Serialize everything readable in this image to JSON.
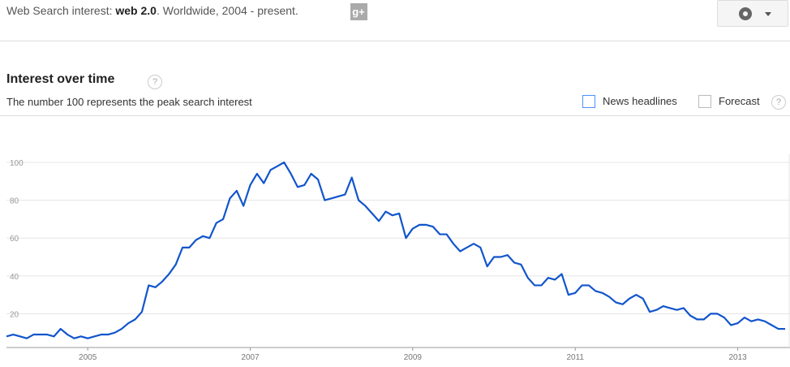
{
  "header": {
    "prefix": "Web Search interest: ",
    "term": "web 2.0",
    "suffix": ". Worldwide, 2004 - present."
  },
  "panel": {
    "title": "Interest over time",
    "subtitle": "The number 100 represents the peak search interest",
    "options": [
      "News headlines",
      "Forecast"
    ],
    "help": "?"
  },
  "chart_data": {
    "type": "line",
    "categories": [
      null,
      null,
      null,
      null,
      null,
      null,
      null,
      null,
      null,
      null,
      null,
      null,
      "2005",
      null,
      null,
      null,
      null,
      null,
      null,
      null,
      null,
      null,
      null,
      null,
      null,
      null,
      null,
      null,
      null,
      null,
      null,
      null,
      null,
      null,
      null,
      null,
      "2007",
      null,
      null,
      null,
      null,
      null,
      null,
      null,
      null,
      null,
      null,
      null,
      null,
      null,
      null,
      null,
      null,
      null,
      null,
      null,
      null,
      null,
      null,
      null,
      "2009",
      null,
      null,
      null,
      null,
      null,
      null,
      null,
      null,
      null,
      null,
      null,
      null,
      null,
      null,
      null,
      null,
      null,
      null,
      null,
      null,
      null,
      null,
      null,
      "2011",
      null,
      null,
      null,
      null,
      null,
      null,
      null,
      null,
      null,
      null,
      null,
      null,
      null,
      null,
      null,
      null,
      null,
      null,
      null,
      null,
      null,
      null,
      null,
      "2013",
      null,
      null,
      null,
      null,
      null,
      null,
      null
    ],
    "series": [
      {
        "name": "web 2.0",
        "color": "#1155cc",
        "values": [
          8,
          9,
          8,
          7,
          9,
          9,
          9,
          8,
          12,
          9,
          7,
          8,
          7,
          8,
          9,
          9,
          10,
          12,
          15,
          17,
          21,
          35,
          34,
          37,
          41,
          46,
          55,
          55,
          59,
          61,
          60,
          68,
          70,
          81,
          85,
          77,
          88,
          94,
          89,
          96,
          98,
          100,
          94,
          87,
          88,
          94,
          91,
          80,
          81,
          82,
          83,
          92,
          80,
          77,
          73,
          69,
          74,
          72,
          73,
          60,
          65,
          67,
          67,
          66,
          62,
          62,
          57,
          53,
          55,
          57,
          55,
          45,
          50,
          50,
          51,
          47,
          46,
          39,
          35,
          35,
          39,
          38,
          41,
          30,
          31,
          35,
          35,
          32,
          31,
          29,
          26,
          25,
          28,
          30,
          28,
          21,
          22,
          24,
          23,
          22,
          23,
          19,
          17,
          17,
          20,
          20,
          18,
          14,
          15,
          18,
          16,
          17,
          16,
          14,
          12,
          12
        ]
      }
    ],
    "ylim": [
      0,
      100
    ],
    "yticks": [
      20,
      40,
      60,
      80,
      100
    ],
    "grid": true
  }
}
